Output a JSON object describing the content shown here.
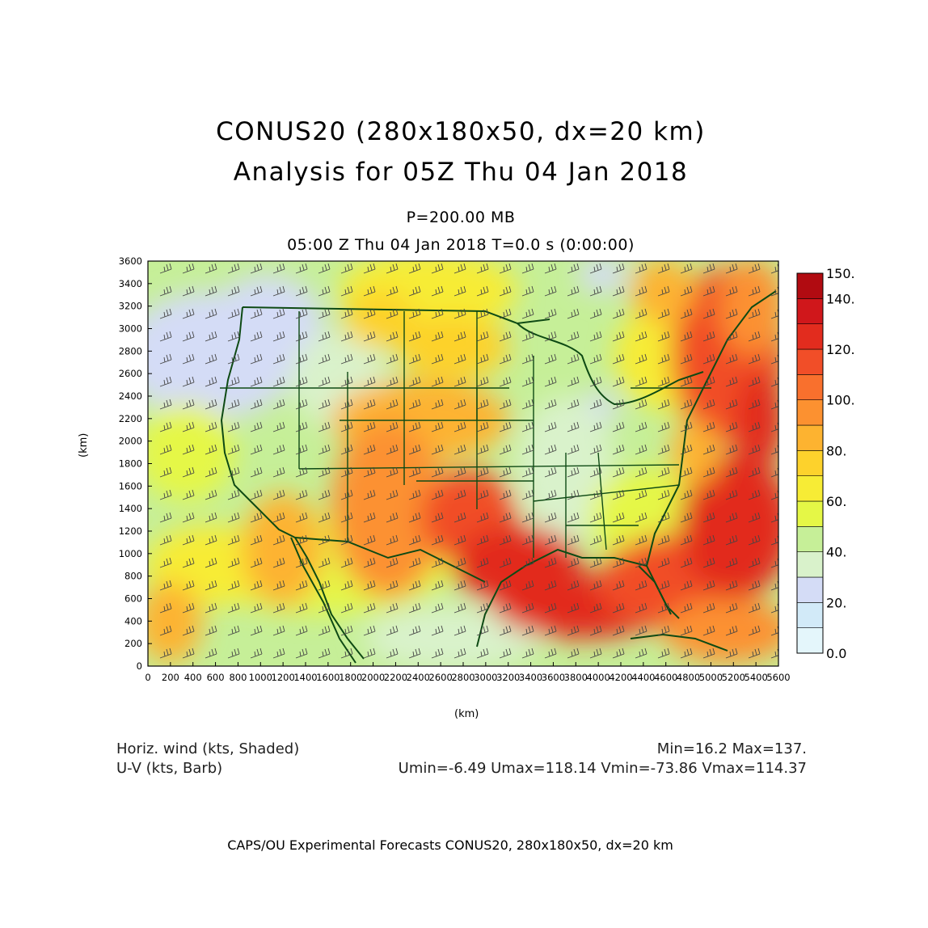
{
  "titles": {
    "line1": "CONUS20 (280x180x50, dx=20 km)",
    "line2": "Analysis for 05Z Thu 04 Jan 2018",
    "level": "P=200.00 MB",
    "valid": "05:00 Z Thu 04 Jan 2018    T=0.0 s (0:00:00)"
  },
  "axes": {
    "xlabel": "(km)",
    "ylabel": "(km)",
    "x_ticks": [
      "0",
      "200",
      "400",
      "600",
      "800",
      "1000",
      "1200",
      "1400",
      "1600",
      "1800",
      "2000",
      "2200",
      "2400",
      "2600",
      "2800",
      "3000",
      "3200",
      "3400",
      "3600",
      "3800",
      "4000",
      "4200",
      "4400",
      "4600",
      "4800",
      "5000",
      "5200",
      "5400",
      "5600"
    ],
    "y_ticks": [
      "0",
      "200",
      "400",
      "600",
      "800",
      "1000",
      "1200",
      "1400",
      "1600",
      "1800",
      "2000",
      "2200",
      "2400",
      "2600",
      "2800",
      "3000",
      "3200",
      "3400",
      "3600"
    ],
    "x_range": [
      0,
      5600
    ],
    "y_range": [
      0,
      3600
    ]
  },
  "colorbar": {
    "labels": [
      "150.",
      "140.",
      "120.",
      "100.",
      "80.",
      "60.",
      "40.",
      "20.",
      "0.0"
    ],
    "levels": [
      0,
      10,
      20,
      30,
      40,
      50,
      60,
      70,
      80,
      90,
      100,
      110,
      120,
      130,
      140,
      150
    ],
    "colors": [
      "#e4f6fb",
      "#d2eaf8",
      "#d4dcf6",
      "#d9f2cb",
      "#c6ef98",
      "#e5f746",
      "#f7ec35",
      "#fdd22c",
      "#fdb330",
      "#fc9130",
      "#f9702d",
      "#f14e28",
      "#e22c1e",
      "#d0171b",
      "#b10b11"
    ]
  },
  "stats": {
    "field1": "Horiz. wind (kts, Shaded)",
    "field2": "U-V (kts, Barb)",
    "minmax": "Min=16.2 Max=137.",
    "uv": "Umin=-6.49 Umax=118.14 Vmin=-73.86 Vmax=114.37"
  },
  "credit": "CAPS/OU Experimental Forecasts  CONUS20, 280x180x50, dx=20 km",
  "map": {
    "coast_color": "#0e4a14",
    "barb_color": "#444444",
    "wind_peak_kts": 137,
    "wind_min_kts": 16.2
  }
}
